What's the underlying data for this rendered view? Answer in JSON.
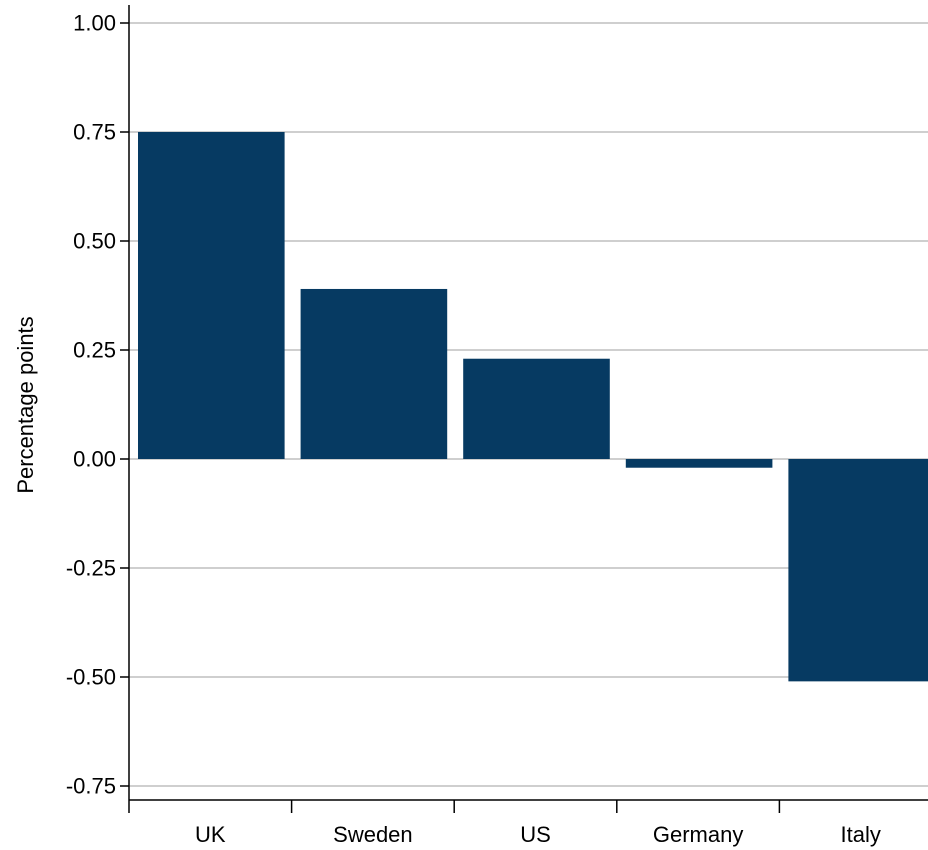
{
  "chart_data": {
    "type": "bar",
    "categories": [
      "UK",
      "Sweden",
      "US",
      "Germany",
      "Italy"
    ],
    "values": [
      0.75,
      0.39,
      0.23,
      -0.02,
      -0.51
    ],
    "title": "",
    "xlabel": "",
    "ylabel": "Percentage points",
    "ylim": [
      -0.8,
      1.04
    ],
    "yticks": [
      1.0,
      0.75,
      0.5,
      0.25,
      0.0,
      -0.25,
      -0.5,
      -0.75
    ],
    "ytick_labels": [
      "1.00",
      "0.75",
      "0.50",
      "0.25",
      "0.00",
      "-0.25",
      "-0.50",
      "-0.75"
    ],
    "grid": true,
    "legend": "none",
    "bar_color": "#063a62",
    "grid_color": "#bfbfbf"
  }
}
